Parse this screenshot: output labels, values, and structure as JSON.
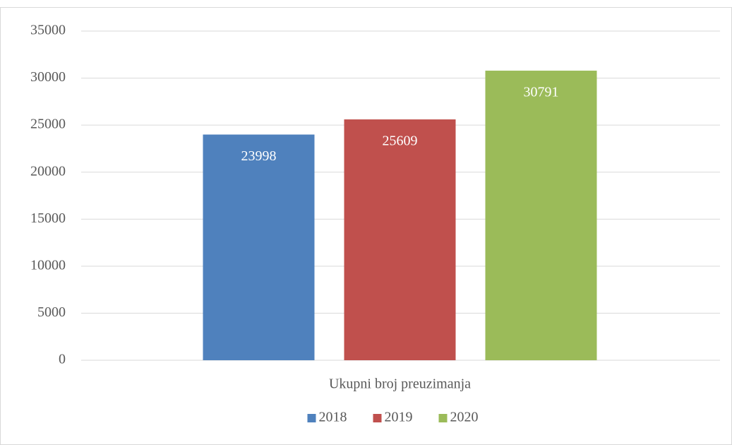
{
  "chart_data": {
    "type": "bar",
    "categories": [
      "Ukupni broj preuzimanja"
    ],
    "series": [
      {
        "name": "2018",
        "color": "#4f81bd",
        "values": [
          23998
        ]
      },
      {
        "name": "2019",
        "color": "#c0504d",
        "values": [
          25609
        ]
      },
      {
        "name": "2020",
        "color": "#9bbb59",
        "values": [
          30791
        ]
      }
    ],
    "ylim": [
      0,
      35000
    ],
    "yticks": [
      0,
      5000,
      10000,
      15000,
      20000,
      25000,
      30000,
      35000
    ],
    "grid": true,
    "legend": "bottom",
    "data_labels": true
  }
}
